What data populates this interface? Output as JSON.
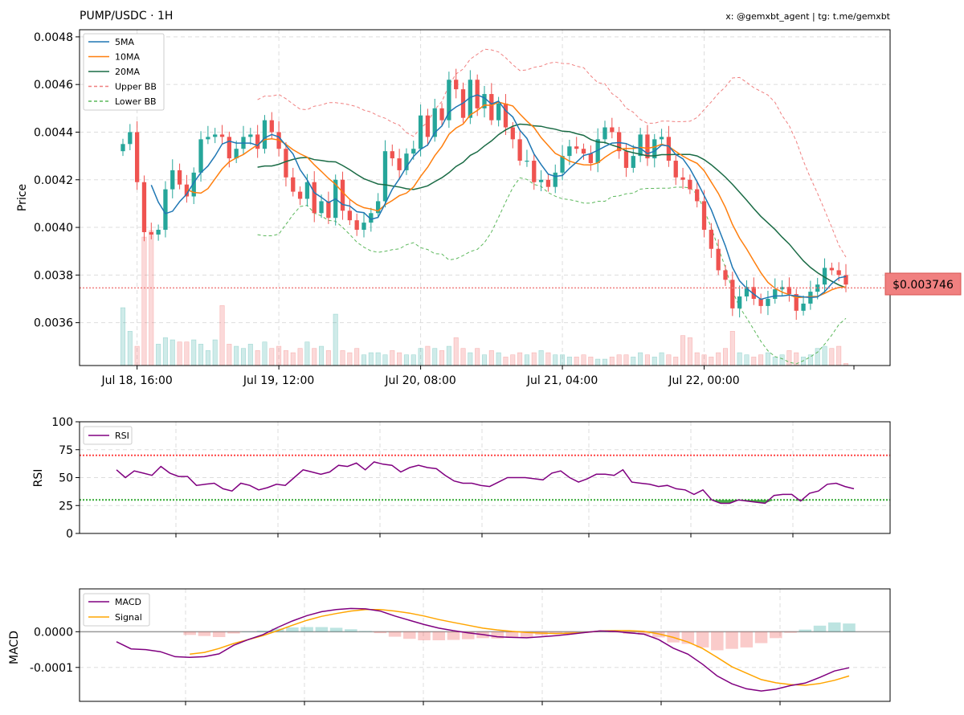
{
  "header": {
    "title": "PUMP/USDC · 1H",
    "credit": "x: @gemxbt_agent | tg: t.me/gemxbt"
  },
  "colors": {
    "up": "#26a69a",
    "down": "#ef5350",
    "ma5": "#1f77b4",
    "ma10": "#ff7f0e",
    "ma20": "#1a6b45",
    "upper_bb": "#f08080",
    "lower_bb": "#5cb85c",
    "rsi": "#800080",
    "macd": "#800080",
    "signal": "#ffa500",
    "overbought": "#ff4444",
    "oversold": "#33aa33",
    "price_tag_bg": "#f08080"
  },
  "chart_data": [
    {
      "type": "candlestick",
      "panel": "price",
      "ylabel": "Price",
      "ylim": [
        0.00342,
        0.00483
      ],
      "yticks": [
        "0.0048",
        "0.0046",
        "0.0044",
        "0.0042",
        "0.0040",
        "0.0038",
        "0.0036"
      ],
      "ytick_values": [
        0.0048,
        0.0046,
        0.0044,
        0.0042,
        0.004,
        0.0038,
        0.0036
      ],
      "xticks": [
        "Jul 18, 16:00",
        "Jul 19, 12:00",
        "Jul 20, 08:00",
        "Jul 21, 04:00",
        "Jul 22, 00:00"
      ],
      "xtick_index": [
        2,
        22,
        42,
        62,
        82
      ],
      "current_price": 0.003746,
      "current_price_label": "$0.003746",
      "legend": [
        "5MA",
        "10MA",
        "20MA",
        "Upper BB",
        "Lower BB"
      ],
      "legend_position": "top-left",
      "grid": true,
      "closes": [
        0.00435,
        0.0044,
        0.00419,
        0.00398,
        0.00397,
        0.00399,
        0.00416,
        0.00424,
        0.00418,
        0.00413,
        0.00423,
        0.00437,
        0.00438,
        0.00439,
        0.00438,
        0.00429,
        0.00433,
        0.00438,
        0.00439,
        0.00433,
        0.00445,
        0.0044,
        0.00433,
        0.00421,
        0.00415,
        0.00412,
        0.00419,
        0.00406,
        0.00411,
        0.00404,
        0.0042,
        0.00407,
        0.00403,
        0.00399,
        0.00402,
        0.00406,
        0.00411,
        0.00432,
        0.00429,
        0.00424,
        0.00431,
        0.00433,
        0.00447,
        0.00438,
        0.0045,
        0.00445,
        0.00462,
        0.00458,
        0.00446,
        0.00462,
        0.0045,
        0.00456,
        0.00445,
        0.00452,
        0.00442,
        0.00437,
        0.00428,
        0.00428,
        0.00419,
        0.0042,
        0.00417,
        0.00423,
        0.0043,
        0.00434,
        0.00433,
        0.00431,
        0.00427,
        0.00437,
        0.00442,
        0.0044,
        0.00432,
        0.00425,
        0.0043,
        0.00439,
        0.00429,
        0.00437,
        0.00438,
        0.00428,
        0.00421,
        0.0042,
        0.00416,
        0.00411,
        0.00399,
        0.00391,
        0.00382,
        0.00378,
        0.00366,
        0.00371,
        0.00375,
        0.0037,
        0.00367,
        0.0037,
        0.00374,
        0.00375,
        0.00372,
        0.00365,
        0.00368,
        0.00373,
        0.00376,
        0.00383,
        0.00382,
        0.0038,
        0.00376
      ],
      "volumes": [
        27,
        16,
        9,
        60,
        63,
        10,
        13,
        12,
        11,
        11,
        12,
        10,
        7,
        12,
        28,
        10,
        9,
        8,
        10,
        7,
        11,
        8,
        9,
        7,
        6,
        8,
        11,
        8,
        9,
        7,
        24,
        7,
        6,
        8,
        5,
        6,
        6,
        5,
        7,
        6,
        5,
        5,
        8,
        9,
        8,
        7,
        9,
        13,
        8,
        6,
        8,
        5,
        7,
        6,
        4,
        5,
        6,
        5,
        6,
        7,
        6,
        5,
        5,
        4,
        4,
        5,
        4,
        3,
        3,
        4,
        5,
        5,
        4,
        6,
        5,
        4,
        6,
        5,
        4,
        14,
        13,
        6,
        5,
        4,
        6,
        8,
        16,
        6,
        5,
        4,
        5,
        6,
        4,
        5,
        7,
        6,
        4,
        5,
        8,
        9,
        8,
        9,
        1
      ]
    },
    {
      "type": "line",
      "panel": "rsi",
      "ylabel": "RSI",
      "ylim": [
        0,
        100
      ],
      "yticks": [
        "0",
        "25",
        "50",
        "75",
        "100"
      ],
      "ytick_values": [
        0,
        25,
        50,
        75,
        100
      ],
      "overbought": 70,
      "oversold": 30,
      "legend": [
        "RSI"
      ],
      "legend_position": "top-left",
      "rsi_values": [
        57,
        50,
        56,
        54,
        52,
        60,
        54,
        51,
        51,
        43,
        44,
        45,
        40,
        38,
        45,
        43,
        39,
        41,
        44,
        43,
        50,
        57,
        55,
        53,
        55,
        61,
        60,
        63,
        57,
        64,
        62,
        61,
        55,
        59,
        61,
        59,
        58,
        52,
        47,
        45,
        45,
        43,
        42,
        46,
        50,
        50,
        50,
        49,
        48,
        54,
        56,
        50,
        46,
        49,
        53,
        53,
        52,
        57,
        46,
        45,
        44,
        42,
        43,
        40,
        39,
        35,
        39,
        30,
        27,
        27,
        30,
        29,
        28,
        27,
        34,
        35,
        35,
        29,
        36,
        38,
        44,
        45,
        42,
        40
      ]
    },
    {
      "type": "line",
      "panel": "macd",
      "ylabel": "MACD",
      "ylim": [
        -0.000195,
        0.00012
      ],
      "yticks": [
        "0.0000",
        "-0.0001"
      ],
      "ytick_values": [
        0,
        -0.0001
      ],
      "legend": [
        "MACD",
        "Signal"
      ],
      "legend_position": "top-left",
      "macd_values": [
        -2.8e-05,
        -4.8e-05,
        -5e-05,
        -5.6e-05,
        -7e-05,
        -7.2e-05,
        -7e-05,
        -6.2e-05,
        -3.8e-05,
        -2.2e-05,
        -8e-06,
        1.2e-05,
        3e-05,
        4.5e-05,
        5.6e-05,
        6.2e-05,
        6.5e-05,
        6.4e-05,
        5.8e-05,
        4.4e-05,
        3.2e-05,
        2e-05,
        1e-05,
        3e-06,
        -3e-06,
        -8e-06,
        -1.4e-05,
        -1.6e-05,
        -1.7e-05,
        -1.4e-05,
        -1.1e-05,
        -7e-06,
        -2e-06,
        2e-06,
        1e-06,
        -3e-06,
        -7e-06,
        -2.2e-05,
        -4.6e-05,
        -6.3e-05,
        -9.1e-05,
        -0.000124,
        -0.000146,
        -0.00016,
        -0.000166,
        -0.000161,
        -0.000151,
        -0.000144,
        -0.000128,
        -0.00011,
        -0.000101
      ],
      "signal_values": [
        null,
        null,
        null,
        null,
        null,
        -6.3e-05,
        -5.8e-05,
        -4.7e-05,
        -3.3e-05,
        -2.2e-05,
        -1.1e-05,
        3e-06,
        1.8e-05,
        3.2e-05,
        4.3e-05,
        5.1e-05,
        5.8e-05,
        6.2e-05,
        6.2e-05,
        5.8e-05,
        5.2e-05,
        4.4e-05,
        3.4e-05,
        2.6e-05,
        1.8e-05,
        1e-05,
        5e-06,
        1e-06,
        -2e-06,
        -4e-06,
        -5e-06,
        -4e-06,
        -2e-06,
        2e-06,
        3e-06,
        3e-06,
        1e-06,
        -6e-06,
        -1.6e-05,
        -2.9e-05,
        -4.7e-05,
        -7.2e-05,
        -9.8e-05,
        -0.000116,
        -0.000134,
        -0.000143,
        -0.000148,
        -0.00015,
        -0.000145,
        -0.000136,
        -0.000124
      ]
    }
  ]
}
